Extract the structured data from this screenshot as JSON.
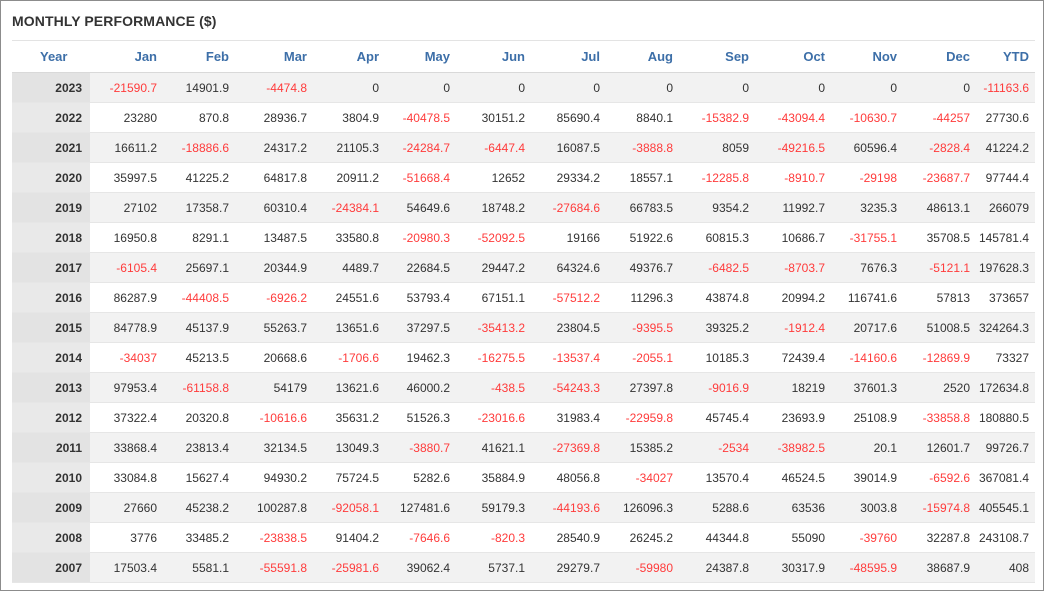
{
  "title": "MONTHLY PERFORMANCE ($)",
  "columns": [
    "Year",
    "Jan",
    "Feb",
    "Mar",
    "Apr",
    "May",
    "Jun",
    "Jul",
    "Aug",
    "Sep",
    "Oct",
    "Nov",
    "Dec",
    "YTD"
  ],
  "colors": {
    "header_text": "#3d6fa8",
    "negative_text": "#ff3b3b",
    "text": "#333333"
  },
  "rows": [
    {
      "year": "2023",
      "values": [
        "-21590.7",
        "14901.9",
        "-4474.8",
        "0",
        "0",
        "0",
        "0",
        "0",
        "0",
        "0",
        "0",
        "0",
        "-11163.6"
      ]
    },
    {
      "year": "2022",
      "values": [
        "23280",
        "870.8",
        "28936.7",
        "3804.9",
        "-40478.5",
        "30151.2",
        "85690.4",
        "8840.1",
        "-15382.9",
        "-43094.4",
        "-10630.7",
        "-44257",
        "27730.6"
      ]
    },
    {
      "year": "2021",
      "values": [
        "16611.2",
        "-18886.6",
        "24317.2",
        "21105.3",
        "-24284.7",
        "-6447.4",
        "16087.5",
        "-3888.8",
        "8059",
        "-49216.5",
        "60596.4",
        "-2828.4",
        "41224.2"
      ]
    },
    {
      "year": "2020",
      "values": [
        "35997.5",
        "41225.2",
        "64817.8",
        "20911.2",
        "-51668.4",
        "12652",
        "29334.2",
        "18557.1",
        "-12285.8",
        "-8910.7",
        "-29198",
        "-23687.7",
        "97744.4"
      ]
    },
    {
      "year": "2019",
      "values": [
        "27102",
        "17358.7",
        "60310.4",
        "-24384.1",
        "54649.6",
        "18748.2",
        "-27684.6",
        "66783.5",
        "9354.2",
        "11992.7",
        "3235.3",
        "48613.1",
        "266079"
      ]
    },
    {
      "year": "2018",
      "values": [
        "16950.8",
        "8291.1",
        "13487.5",
        "33580.8",
        "-20980.3",
        "-52092.5",
        "19166",
        "51922.6",
        "60815.3",
        "10686.7",
        "-31755.1",
        "35708.5",
        "145781.4"
      ]
    },
    {
      "year": "2017",
      "values": [
        "-6105.4",
        "25697.1",
        "20344.9",
        "4489.7",
        "22684.5",
        "29447.2",
        "64324.6",
        "49376.7",
        "-6482.5",
        "-8703.7",
        "7676.3",
        "-5121.1",
        "197628.3"
      ]
    },
    {
      "year": "2016",
      "values": [
        "86287.9",
        "-44408.5",
        "-6926.2",
        "24551.6",
        "53793.4",
        "67151.1",
        "-57512.2",
        "11296.3",
        "43874.8",
        "20994.2",
        "116741.6",
        "57813",
        "373657"
      ]
    },
    {
      "year": "2015",
      "values": [
        "84778.9",
        "45137.9",
        "55263.7",
        "13651.6",
        "37297.5",
        "-35413.2",
        "23804.5",
        "-9395.5",
        "39325.2",
        "-1912.4",
        "20717.6",
        "51008.5",
        "324264.3"
      ]
    },
    {
      "year": "2014",
      "values": [
        "-34037",
        "45213.5",
        "20668.6",
        "-1706.6",
        "19462.3",
        "-16275.5",
        "-13537.4",
        "-2055.1",
        "10185.3",
        "72439.4",
        "-14160.6",
        "-12869.9",
        "73327"
      ]
    },
    {
      "year": "2013",
      "values": [
        "97953.4",
        "-61158.8",
        "54179",
        "13621.6",
        "46000.2",
        "-438.5",
        "-54243.3",
        "27397.8",
        "-9016.9",
        "18219",
        "37601.3",
        "2520",
        "172634.8"
      ]
    },
    {
      "year": "2012",
      "values": [
        "37322.4",
        "20320.8",
        "-10616.6",
        "35631.2",
        "51526.3",
        "-23016.6",
        "31983.4",
        "-22959.8",
        "45745.4",
        "23693.9",
        "25108.9",
        "-33858.8",
        "180880.5"
      ]
    },
    {
      "year": "2011",
      "values": [
        "33868.4",
        "23813.4",
        "32134.5",
        "13049.3",
        "-3880.7",
        "41621.1",
        "-27369.8",
        "15385.2",
        "-2534",
        "-38982.5",
        "20.1",
        "12601.7",
        "99726.7"
      ]
    },
    {
      "year": "2010",
      "values": [
        "33084.8",
        "15627.4",
        "94930.2",
        "75724.5",
        "5282.6",
        "35884.9",
        "48056.8",
        "-34027",
        "13570.4",
        "46524.5",
        "39014.9",
        "-6592.6",
        "367081.4"
      ]
    },
    {
      "year": "2009",
      "values": [
        "27660",
        "45238.2",
        "100287.8",
        "-92058.1",
        "127481.6",
        "59179.3",
        "-44193.6",
        "126096.3",
        "5288.6",
        "63536",
        "3003.8",
        "-15974.8",
        "405545.1"
      ]
    },
    {
      "year": "2008",
      "values": [
        "3776",
        "33485.2",
        "-23838.5",
        "91404.2",
        "-7646.6",
        "-820.3",
        "28540.9",
        "26245.2",
        "44344.8",
        "55090",
        "-39760",
        "32287.8",
        "243108.7"
      ]
    },
    {
      "year": "2007",
      "values": [
        "17503.4",
        "5581.1",
        "-55591.8",
        "-25981.6",
        "39062.4",
        "5737.1",
        "29279.7",
        "-59980",
        "24387.8",
        "30317.9",
        "-48595.9",
        "38687.9",
        "408"
      ]
    }
  ]
}
